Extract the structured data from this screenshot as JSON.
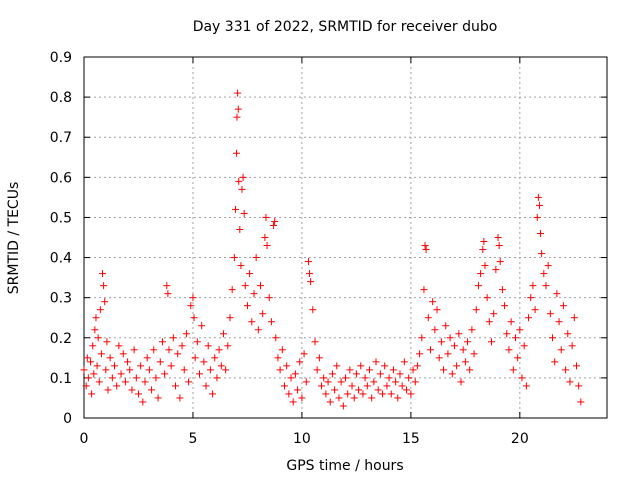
{
  "chart_data": {
    "type": "scatter",
    "title": "Day 331 of 2022, SRMTID for receiver dubo",
    "xlabel": "GPS time / hours",
    "ylabel": "SRMTID / TECUs",
    "xlim": [
      0,
      24
    ],
    "ylim": [
      0,
      0.9
    ],
    "x_ticks": [
      0,
      5,
      10,
      15,
      20
    ],
    "y_ticks": [
      0,
      0.1,
      0.2,
      0.3,
      0.4,
      0.5,
      0.6,
      0.7,
      0.8,
      0.9
    ],
    "x_tick_labels": [
      "0",
      "5",
      "10",
      "15",
      "20"
    ],
    "y_tick_labels": [
      "0",
      "0.1",
      "0.2",
      "0.3",
      "0.4",
      "0.5",
      "0.6",
      "0.7",
      "0.8",
      "0.9"
    ],
    "grid": true,
    "marker": "+",
    "series": [
      {
        "name": "SRMTID",
        "color": "#ff0000",
        "points": [
          [
            0.0,
            0.12
          ],
          [
            0.1,
            0.08
          ],
          [
            0.15,
            0.15
          ],
          [
            0.2,
            0.1
          ],
          [
            0.3,
            0.14
          ],
          [
            0.35,
            0.06
          ],
          [
            0.4,
            0.18
          ],
          [
            0.45,
            0.11
          ],
          [
            0.5,
            0.22
          ],
          [
            0.55,
            0.25
          ],
          [
            0.6,
            0.13
          ],
          [
            0.65,
            0.2
          ],
          [
            0.7,
            0.09
          ],
          [
            0.75,
            0.27
          ],
          [
            0.8,
            0.16
          ],
          [
            0.85,
            0.36
          ],
          [
            0.9,
            0.33
          ],
          [
            0.95,
            0.29
          ],
          [
            1.0,
            0.12
          ],
          [
            1.05,
            0.19
          ],
          [
            1.1,
            0.07
          ],
          [
            1.2,
            0.15
          ],
          [
            1.3,
            0.1
          ],
          [
            1.4,
            0.13
          ],
          [
            1.5,
            0.08
          ],
          [
            1.6,
            0.18
          ],
          [
            1.7,
            0.11
          ],
          [
            1.8,
            0.16
          ],
          [
            1.9,
            0.09
          ],
          [
            2.0,
            0.14
          ],
          [
            2.1,
            0.12
          ],
          [
            2.2,
            0.07
          ],
          [
            2.3,
            0.17
          ],
          [
            2.4,
            0.1
          ],
          [
            2.5,
            0.06
          ],
          [
            2.6,
            0.13
          ],
          [
            2.7,
            0.04
          ],
          [
            2.8,
            0.09
          ],
          [
            2.9,
            0.15
          ],
          [
            3.0,
            0.12
          ],
          [
            3.1,
            0.07
          ],
          [
            3.2,
            0.17
          ],
          [
            3.3,
            0.1
          ],
          [
            3.4,
            0.05
          ],
          [
            3.5,
            0.14
          ],
          [
            3.6,
            0.19
          ],
          [
            3.7,
            0.11
          ],
          [
            3.8,
            0.33
          ],
          [
            3.85,
            0.31
          ],
          [
            3.9,
            0.17
          ],
          [
            4.0,
            0.13
          ],
          [
            4.1,
            0.2
          ],
          [
            4.2,
            0.08
          ],
          [
            4.3,
            0.16
          ],
          [
            4.4,
            0.05
          ],
          [
            4.5,
            0.18
          ],
          [
            4.6,
            0.12
          ],
          [
            4.7,
            0.21
          ],
          [
            4.8,
            0.09
          ],
          [
            4.9,
            0.28
          ],
          [
            5.0,
            0.3
          ],
          [
            5.05,
            0.25
          ],
          [
            5.1,
            0.15
          ],
          [
            5.2,
            0.19
          ],
          [
            5.3,
            0.11
          ],
          [
            5.4,
            0.23
          ],
          [
            5.5,
            0.14
          ],
          [
            5.6,
            0.08
          ],
          [
            5.7,
            0.18
          ],
          [
            5.8,
            0.12
          ],
          [
            5.9,
            0.06
          ],
          [
            6.0,
            0.15
          ],
          [
            6.1,
            0.1
          ],
          [
            6.2,
            0.17
          ],
          [
            6.3,
            0.13
          ],
          [
            6.4,
            0.21
          ],
          [
            6.5,
            0.12
          ],
          [
            6.6,
            0.18
          ],
          [
            6.7,
            0.25
          ],
          [
            6.8,
            0.32
          ],
          [
            6.9,
            0.4
          ],
          [
            6.95,
            0.52
          ],
          [
            7.0,
            0.66
          ],
          [
            7.02,
            0.75
          ],
          [
            7.05,
            0.81
          ],
          [
            7.08,
            0.77
          ],
          [
            7.1,
            0.59
          ],
          [
            7.15,
            0.47
          ],
          [
            7.2,
            0.38
          ],
          [
            7.25,
            0.57
          ],
          [
            7.3,
            0.6
          ],
          [
            7.35,
            0.51
          ],
          [
            7.4,
            0.33
          ],
          [
            7.5,
            0.28
          ],
          [
            7.6,
            0.36
          ],
          [
            7.7,
            0.24
          ],
          [
            7.8,
            0.31
          ],
          [
            7.9,
            0.4
          ],
          [
            8.0,
            0.22
          ],
          [
            8.1,
            0.33
          ],
          [
            8.2,
            0.26
          ],
          [
            8.3,
            0.45
          ],
          [
            8.35,
            0.5
          ],
          [
            8.4,
            0.43
          ],
          [
            8.5,
            0.3
          ],
          [
            8.6,
            0.24
          ],
          [
            8.7,
            0.48
          ],
          [
            8.75,
            0.49
          ],
          [
            8.8,
            0.2
          ],
          [
            8.9,
            0.15
          ],
          [
            9.0,
            0.12
          ],
          [
            9.1,
            0.17
          ],
          [
            9.2,
            0.08
          ],
          [
            9.3,
            0.13
          ],
          [
            9.4,
            0.06
          ],
          [
            9.5,
            0.1
          ],
          [
            9.6,
            0.04
          ],
          [
            9.7,
            0.11
          ],
          [
            9.8,
            0.07
          ],
          [
            9.9,
            0.14
          ],
          [
            10.0,
            0.05
          ],
          [
            10.1,
            0.16
          ],
          [
            10.2,
            0.09
          ],
          [
            10.3,
            0.39
          ],
          [
            10.35,
            0.36
          ],
          [
            10.4,
            0.34
          ],
          [
            10.5,
            0.27
          ],
          [
            10.6,
            0.19
          ],
          [
            10.7,
            0.12
          ],
          [
            10.8,
            0.15
          ],
          [
            10.9,
            0.08
          ],
          [
            11.0,
            0.1
          ],
          [
            11.1,
            0.06
          ],
          [
            11.2,
            0.09
          ],
          [
            11.3,
            0.04
          ],
          [
            11.4,
            0.11
          ],
          [
            11.5,
            0.07
          ],
          [
            11.6,
            0.13
          ],
          [
            11.7,
            0.05
          ],
          [
            11.8,
            0.09
          ],
          [
            11.9,
            0.03
          ],
          [
            12.0,
            0.1
          ],
          [
            12.1,
            0.06
          ],
          [
            12.2,
            0.12
          ],
          [
            12.3,
            0.08
          ],
          [
            12.4,
            0.05
          ],
          [
            12.5,
            0.11
          ],
          [
            12.6,
            0.07
          ],
          [
            12.7,
            0.13
          ],
          [
            12.8,
            0.06
          ],
          [
            12.9,
            0.1
          ],
          [
            13.0,
            0.08
          ],
          [
            13.1,
            0.12
          ],
          [
            13.2,
            0.05
          ],
          [
            13.3,
            0.09
          ],
          [
            13.4,
            0.14
          ],
          [
            13.5,
            0.07
          ],
          [
            13.6,
            0.11
          ],
          [
            13.7,
            0.06
          ],
          [
            13.8,
            0.13
          ],
          [
            13.9,
            0.08
          ],
          [
            14.0,
            0.1
          ],
          [
            14.1,
            0.06
          ],
          [
            14.2,
            0.12
          ],
          [
            14.3,
            0.09
          ],
          [
            14.4,
            0.05
          ],
          [
            14.5,
            0.11
          ],
          [
            14.6,
            0.08
          ],
          [
            14.7,
            0.14
          ],
          [
            14.8,
            0.07
          ],
          [
            14.9,
            0.1
          ],
          [
            15.0,
            0.06
          ],
          [
            15.1,
            0.12
          ],
          [
            15.2,
            0.09
          ],
          [
            15.3,
            0.13
          ],
          [
            15.4,
            0.16
          ],
          [
            15.5,
            0.2
          ],
          [
            15.6,
            0.32
          ],
          [
            15.65,
            0.43
          ],
          [
            15.7,
            0.42
          ],
          [
            15.8,
            0.25
          ],
          [
            15.9,
            0.17
          ],
          [
            16.0,
            0.29
          ],
          [
            16.1,
            0.22
          ],
          [
            16.2,
            0.27
          ],
          [
            16.3,
            0.15
          ],
          [
            16.4,
            0.19
          ],
          [
            16.5,
            0.12
          ],
          [
            16.6,
            0.23
          ],
          [
            16.7,
            0.16
          ],
          [
            16.8,
            0.2
          ],
          [
            16.9,
            0.11
          ],
          [
            17.0,
            0.18
          ],
          [
            17.1,
            0.13
          ],
          [
            17.2,
            0.21
          ],
          [
            17.3,
            0.09
          ],
          [
            17.4,
            0.17
          ],
          [
            17.5,
            0.14
          ],
          [
            17.6,
            0.19
          ],
          [
            17.7,
            0.12
          ],
          [
            17.8,
            0.22
          ],
          [
            17.9,
            0.16
          ],
          [
            18.0,
            0.27
          ],
          [
            18.1,
            0.33
          ],
          [
            18.2,
            0.36
          ],
          [
            18.3,
            0.42
          ],
          [
            18.35,
            0.44
          ],
          [
            18.4,
            0.38
          ],
          [
            18.5,
            0.3
          ],
          [
            18.6,
            0.24
          ],
          [
            18.7,
            0.19
          ],
          [
            18.8,
            0.26
          ],
          [
            18.9,
            0.37
          ],
          [
            19.0,
            0.45
          ],
          [
            19.05,
            0.43
          ],
          [
            19.1,
            0.39
          ],
          [
            19.2,
            0.32
          ],
          [
            19.3,
            0.28
          ],
          [
            19.4,
            0.21
          ],
          [
            19.5,
            0.17
          ],
          [
            19.6,
            0.24
          ],
          [
            19.7,
            0.12
          ],
          [
            19.8,
            0.2
          ],
          [
            19.9,
            0.15
          ],
          [
            20.0,
            0.22
          ],
          [
            20.1,
            0.1
          ],
          [
            20.2,
            0.18
          ],
          [
            20.3,
            0.08
          ],
          [
            20.4,
            0.25
          ],
          [
            20.5,
            0.3
          ],
          [
            20.6,
            0.33
          ],
          [
            20.7,
            0.27
          ],
          [
            20.8,
            0.5
          ],
          [
            20.85,
            0.55
          ],
          [
            20.9,
            0.53
          ],
          [
            20.95,
            0.46
          ],
          [
            21.0,
            0.41
          ],
          [
            21.1,
            0.36
          ],
          [
            21.2,
            0.33
          ],
          [
            21.3,
            0.38
          ],
          [
            21.4,
            0.26
          ],
          [
            21.5,
            0.2
          ],
          [
            21.6,
            0.14
          ],
          [
            21.7,
            0.31
          ],
          [
            21.8,
            0.24
          ],
          [
            21.9,
            0.17
          ],
          [
            22.0,
            0.28
          ],
          [
            22.1,
            0.12
          ],
          [
            22.2,
            0.21
          ],
          [
            22.3,
            0.09
          ],
          [
            22.4,
            0.18
          ],
          [
            22.5,
            0.25
          ],
          [
            22.6,
            0.13
          ],
          [
            22.7,
            0.08
          ],
          [
            22.8,
            0.04
          ]
        ]
      }
    ]
  }
}
